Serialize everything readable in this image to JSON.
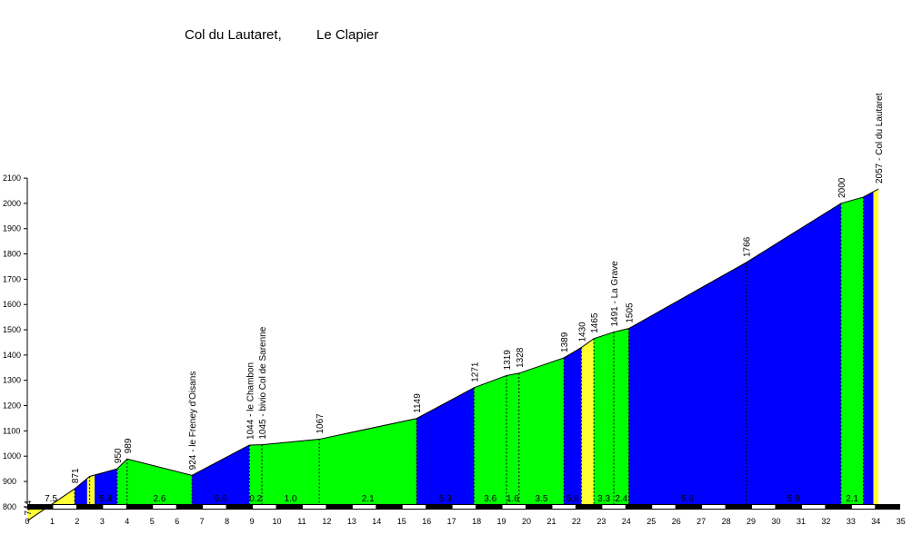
{
  "chart": {
    "title_parts": [
      "Col du Lautaret,",
      "Le Clapier"
    ]
  },
  "chart_data": {
    "type": "area",
    "title": "Col du Lautaret, Le Clapier",
    "xlim": [
      0,
      35
    ],
    "ylim": [
      700,
      2100
    ],
    "x_ticks": [
      0,
      1,
      2,
      3,
      4,
      5,
      6,
      7,
      8,
      9,
      10,
      11,
      12,
      13,
      14,
      15,
      16,
      17,
      18,
      19,
      20,
      21,
      22,
      23,
      24,
      25,
      26,
      27,
      28,
      29,
      30,
      31,
      32,
      33,
      34,
      35
    ],
    "y_ticks": [
      800,
      900,
      1000,
      1100,
      1200,
      1300,
      1400,
      1500,
      1600,
      1700,
      1800,
      1900,
      2000,
      2100
    ],
    "grid": false,
    "colors": {
      "yellow": "#ffff33",
      "blue": "#0000ff",
      "green": "#00ff00"
    },
    "points": [
      {
        "x": 0,
        "y": 744,
        "label": "744"
      },
      {
        "x": 1.9,
        "y": 871,
        "label": "871"
      },
      {
        "x": 2.5,
        "y": 920
      },
      {
        "x": 3.6,
        "y": 950,
        "label": "950"
      },
      {
        "x": 4.0,
        "y": 989,
        "label": "989"
      },
      {
        "x": 6.6,
        "y": 924,
        "label": "924 - le Freney d'Oisans"
      },
      {
        "x": 8.9,
        "y": 1044,
        "label": "1044 - le Chambon"
      },
      {
        "x": 9.4,
        "y": 1045,
        "label": "1045 - bivio Col de Sarenne"
      },
      {
        "x": 11.7,
        "y": 1067,
        "label": "1067"
      },
      {
        "x": 15.6,
        "y": 1149,
        "label": "1149"
      },
      {
        "x": 17.9,
        "y": 1271,
        "label": "1271"
      },
      {
        "x": 19.2,
        "y": 1319,
        "label": "1319"
      },
      {
        "x": 19.7,
        "y": 1328,
        "label": "1328"
      },
      {
        "x": 21.5,
        "y": 1389,
        "label": "1389"
      },
      {
        "x": 22.2,
        "y": 1430,
        "label": "1430"
      },
      {
        "x": 22.7,
        "y": 1465,
        "label": "1465"
      },
      {
        "x": 23.5,
        "y": 1491,
        "label": "1491 - La Grave"
      },
      {
        "x": 24.1,
        "y": 1505,
        "label": "1505"
      },
      {
        "x": 28.8,
        "y": 1766,
        "label": "1766"
      },
      {
        "x": 32.6,
        "y": 2000,
        "label": "2000"
      },
      {
        "x": 33.5,
        "y": 2025
      },
      {
        "x": 34.1,
        "y": 2057,
        "label": "2057 - Col du Lautaret"
      }
    ],
    "segments": [
      {
        "from": 0,
        "to": 1.9,
        "color": "yellow",
        "gradient": "7.5"
      },
      {
        "from": 1.9,
        "to": 2.4,
        "color": "blue",
        "gradient": ""
      },
      {
        "from": 2.4,
        "to": 2.7,
        "color": "yellow",
        "gradient": ""
      },
      {
        "from": 2.7,
        "to": 3.6,
        "color": "blue",
        "gradient": "5.4"
      },
      {
        "from": 3.6,
        "to": 4.0,
        "color": "green",
        "gradient": ""
      },
      {
        "from": 4.0,
        "to": 6.6,
        "color": "green",
        "gradient": "2.6"
      },
      {
        "from": 6.6,
        "to": 8.9,
        "color": "blue",
        "gradient": "5.6"
      },
      {
        "from": 8.9,
        "to": 9.4,
        "color": "green",
        "gradient": "0.2"
      },
      {
        "from": 9.4,
        "to": 11.7,
        "color": "green",
        "gradient": "1.0"
      },
      {
        "from": 11.7,
        "to": 15.6,
        "color": "green",
        "gradient": "2.1"
      },
      {
        "from": 15.6,
        "to": 17.9,
        "color": "blue",
        "gradient": "5.3"
      },
      {
        "from": 17.9,
        "to": 19.2,
        "color": "green",
        "gradient": "3.6"
      },
      {
        "from": 19.2,
        "to": 19.7,
        "color": "green",
        "gradient": "1.6"
      },
      {
        "from": 19.7,
        "to": 21.5,
        "color": "green",
        "gradient": "3.5"
      },
      {
        "from": 21.5,
        "to": 22.2,
        "color": "blue",
        "gradient": "5.8"
      },
      {
        "from": 22.2,
        "to": 22.7,
        "color": "yellow",
        "gradient": ""
      },
      {
        "from": 22.7,
        "to": 23.5,
        "color": "green",
        "gradient": "3.3"
      },
      {
        "from": 23.5,
        "to": 24.1,
        "color": "green",
        "gradient": "2.4"
      },
      {
        "from": 24.1,
        "to": 28.8,
        "color": "blue",
        "gradient": "5.6"
      },
      {
        "from": 28.8,
        "to": 32.6,
        "color": "blue",
        "gradient": "5.9"
      },
      {
        "from": 32.6,
        "to": 33.5,
        "color": "green",
        "gradient": "2.1"
      },
      {
        "from": 33.5,
        "to": 33.9,
        "color": "blue",
        "gradient": ""
      },
      {
        "from": 33.9,
        "to": 34.1,
        "color": "yellow",
        "gradient": ""
      }
    ]
  }
}
